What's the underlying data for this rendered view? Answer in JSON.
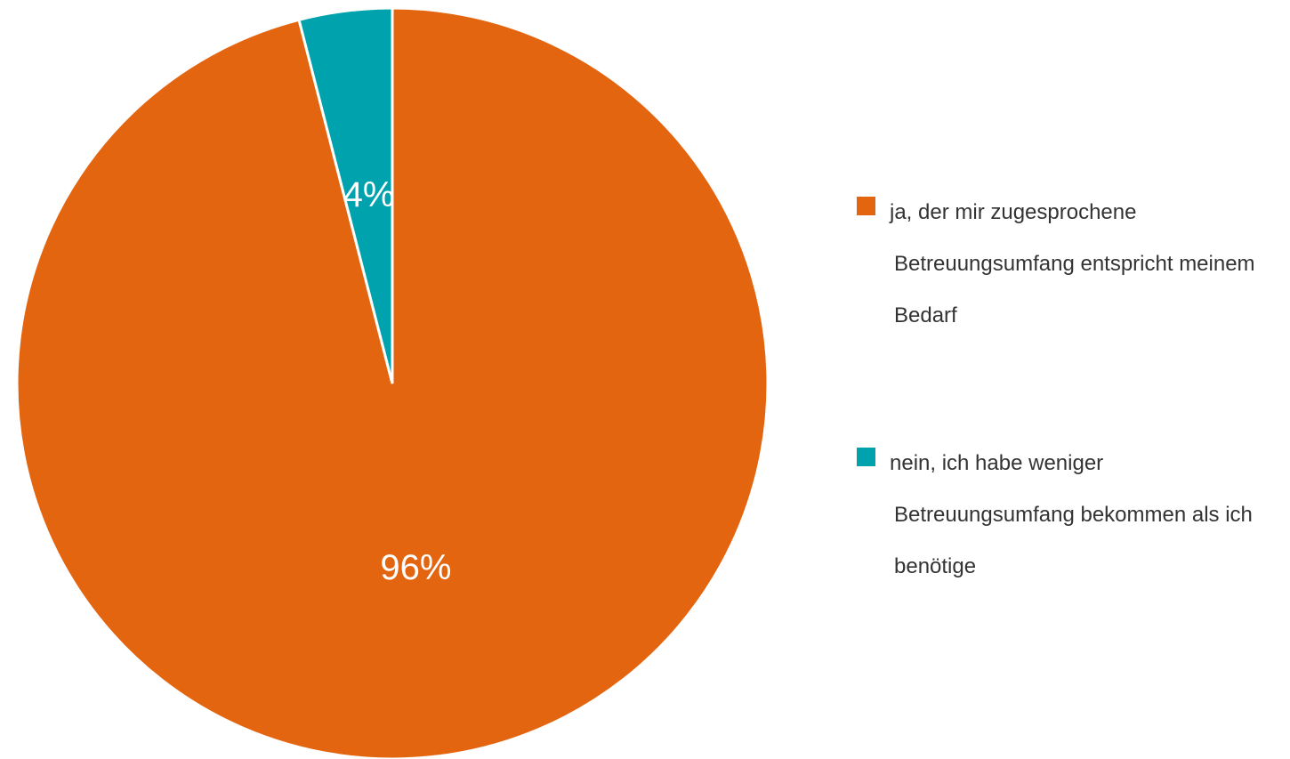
{
  "chart_data": {
    "type": "pie",
    "categories": [
      "ja, der mir zugesprochene Betreuungsumfang entspricht meinem Bedarf",
      "nein, ich habe weniger Betreuungsumfang bekommen als ich benötige"
    ],
    "values": [
      96,
      4
    ],
    "value_labels": [
      "96%",
      "4%"
    ],
    "colors": [
      "#e36510",
      "#00a3ad"
    ],
    "legend": "right"
  }
}
